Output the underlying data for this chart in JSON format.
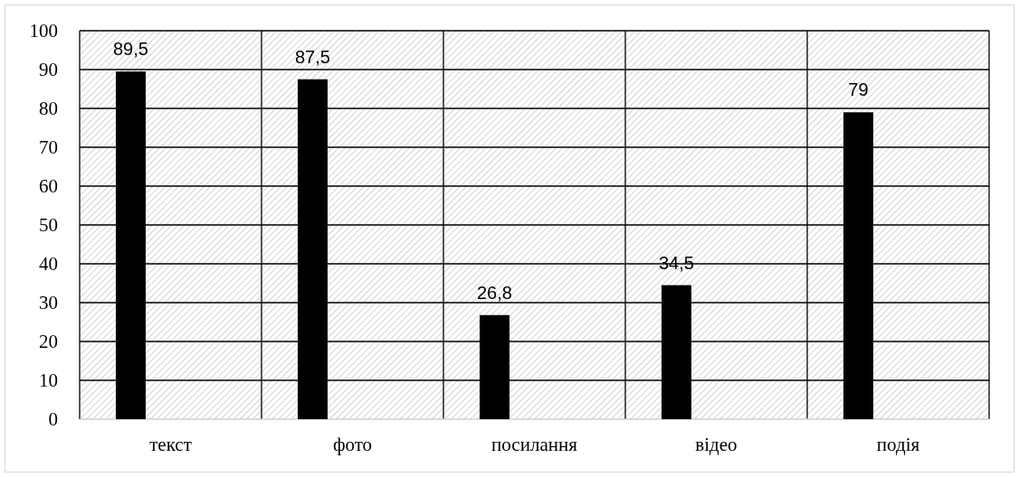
{
  "chart_data": {
    "type": "bar",
    "categories": [
      "текст",
      "фото",
      "посилання",
      "відео",
      "подія"
    ],
    "values": [
      89.5,
      87.5,
      26.8,
      34.5,
      79
    ],
    "color": "#000000",
    "value_labels": [
      "89,5",
      "87,5",
      "26,8",
      "34,5",
      "79"
    ],
    "ylim": [
      0,
      100
    ],
    "yticks": [
      0,
      10,
      20,
      30,
      40,
      50,
      60,
      70,
      80,
      90,
      100
    ],
    "grid": true
  }
}
